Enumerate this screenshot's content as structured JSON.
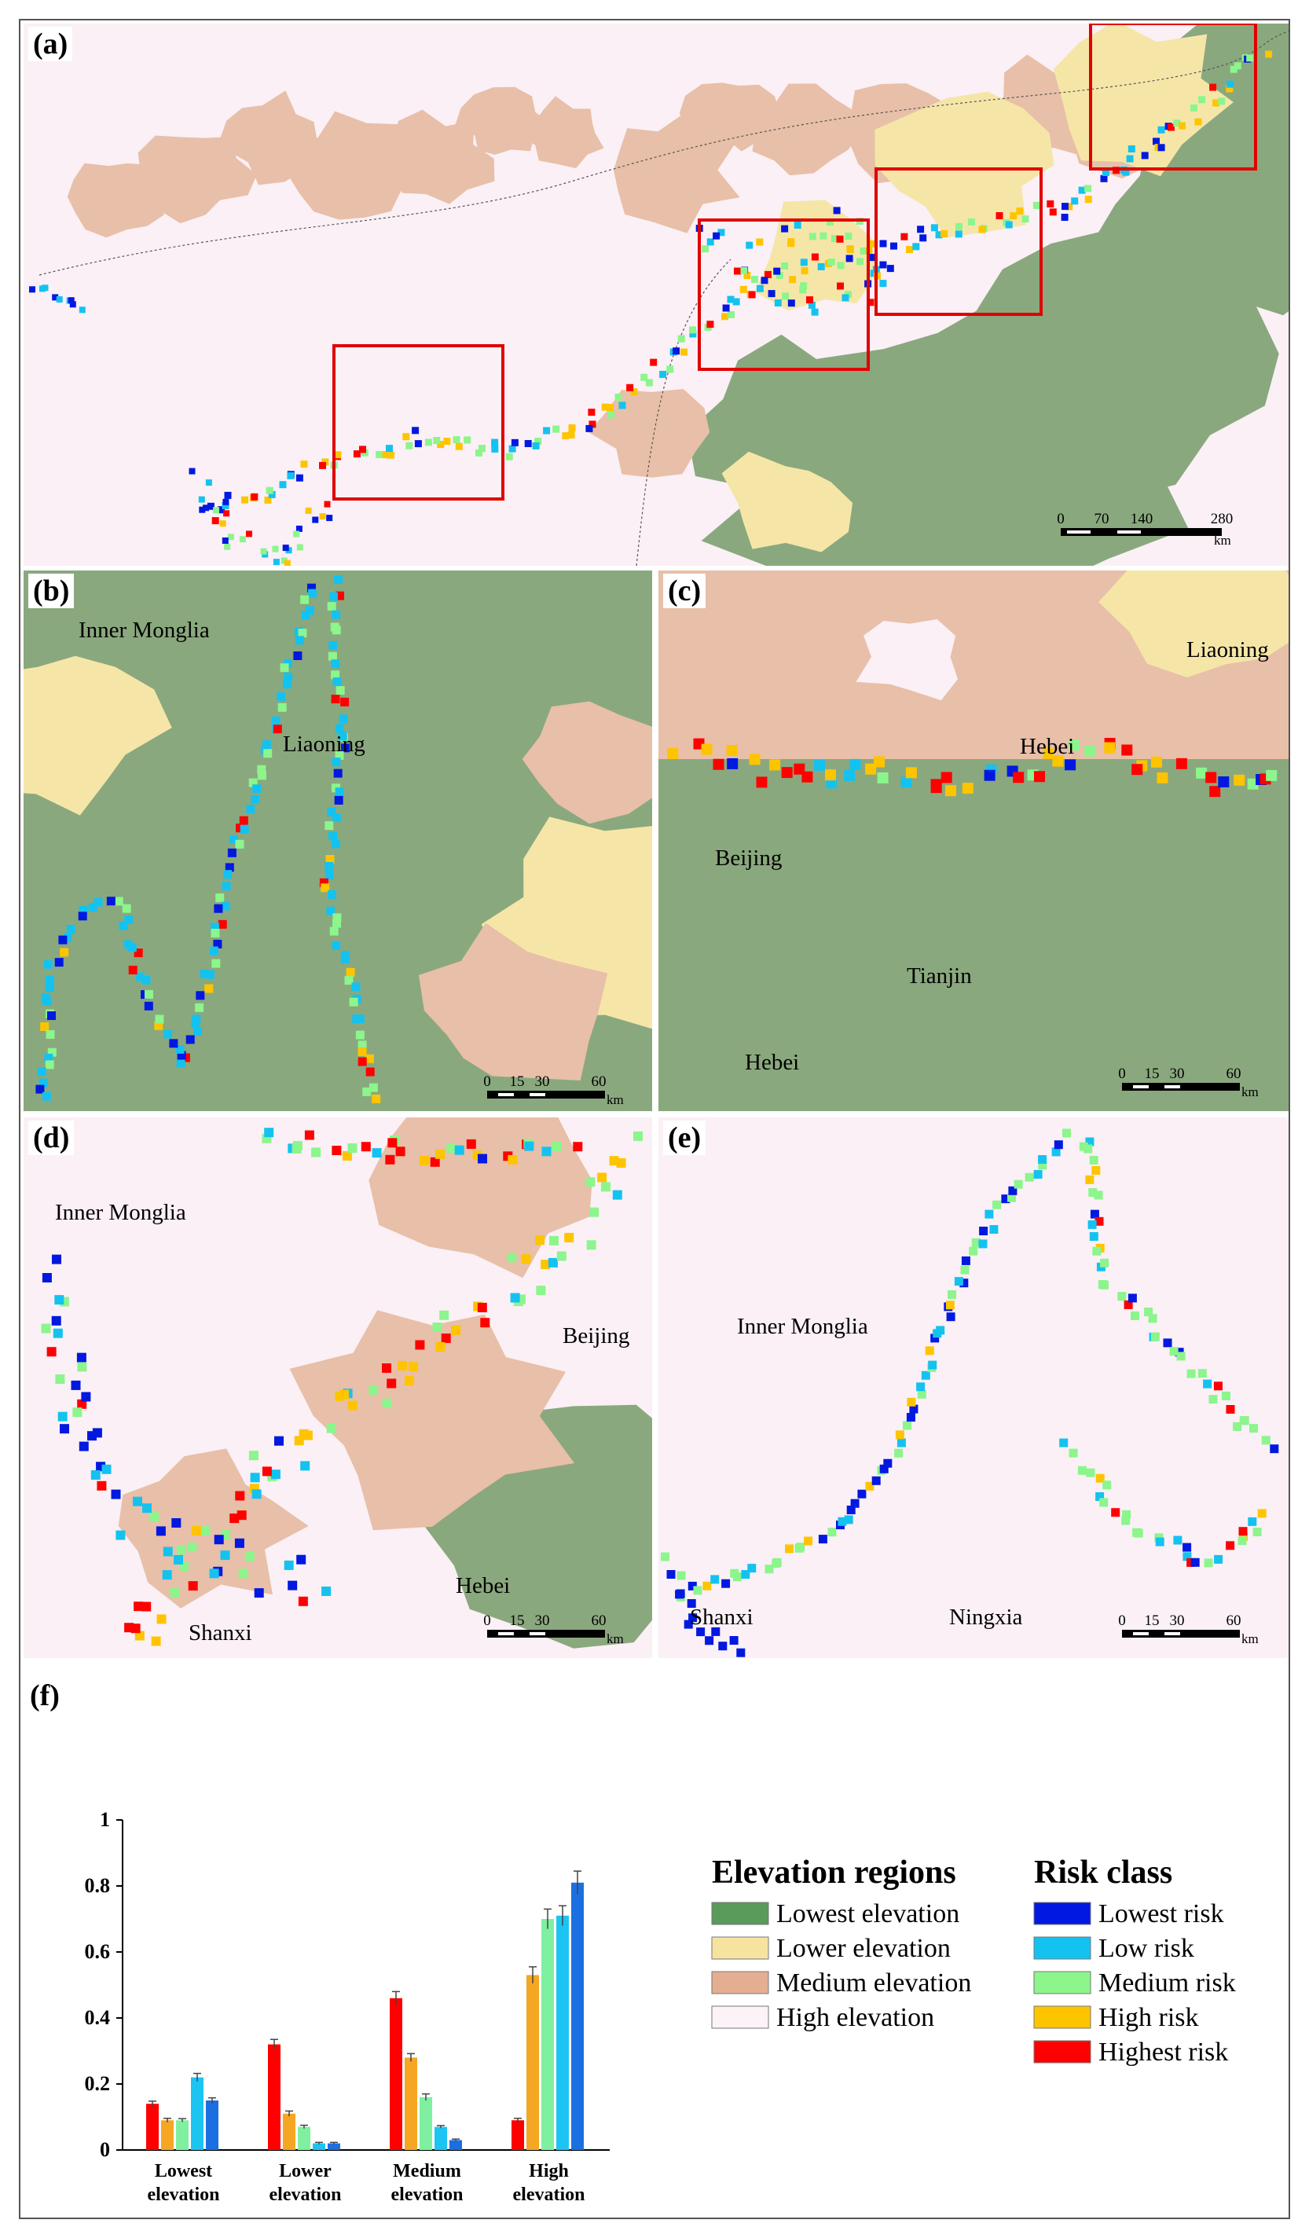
{
  "panels": [
    {
      "id": "a",
      "label": "(a)",
      "scale": {
        "ticks": [
          "0",
          "70",
          "140",
          "280"
        ],
        "unit": "km"
      },
      "place_labels": []
    },
    {
      "id": "b",
      "label": "(b)",
      "scale": {
        "ticks": [
          "0",
          "15",
          "30",
          "60"
        ],
        "unit": "km"
      },
      "place_labels": [
        "Inner Monglia",
        "Liaoning"
      ]
    },
    {
      "id": "c",
      "label": "(c)",
      "scale": {
        "ticks": [
          "0",
          "15",
          "30",
          "60"
        ],
        "unit": "km"
      },
      "place_labels": [
        "Liaoning",
        "Hebei",
        "Beijing",
        "Tianjin",
        "Hebei"
      ]
    },
    {
      "id": "d",
      "label": "(d)",
      "scale": {
        "ticks": [
          "0",
          "15",
          "30",
          "60"
        ],
        "unit": "km"
      },
      "place_labels": [
        "Inner Monglia",
        "Beijing",
        "Hebei",
        "Shanxi"
      ]
    },
    {
      "id": "e",
      "label": "(e)",
      "scale": {
        "ticks": [
          "0",
          "15",
          "30",
          "60"
        ],
        "unit": "km"
      },
      "place_labels": [
        "Inner Monglia",
        "Shanxi",
        "Ningxia"
      ]
    }
  ],
  "colors": {
    "lowest_elev": "#8aa87e",
    "lower_elev": "#f5e6a8",
    "medium_elev": "#e8bfa8",
    "high_elev": "#faf0f6",
    "lowest_risk": "#0018e0",
    "low_risk": "#14c2f0",
    "medium_risk": "#8cf58c",
    "high_risk": "#ffc400",
    "highest_risk": "#ff0000"
  },
  "chart_label": "(f)",
  "chart_data": {
    "type": "bar",
    "categories": [
      "Lowest elevation",
      "Lower elevation",
      "Medium elevation",
      "High elevation"
    ],
    "ylim": [
      0,
      1
    ],
    "yticks": [
      "0",
      "0.2",
      "0.4",
      "0.6",
      "0.8",
      "1"
    ],
    "series": [
      {
        "name": "Highest risk",
        "color": "#ff0000",
        "values": [
          0.14,
          0.32,
          0.46,
          0.09
        ],
        "errors": [
          0.008,
          0.015,
          0.02,
          0.006
        ]
      },
      {
        "name": "High risk",
        "color": "#f5a623",
        "values": [
          0.09,
          0.11,
          0.28,
          0.53
        ],
        "errors": [
          0.006,
          0.008,
          0.012,
          0.025
        ]
      },
      {
        "name": "Medium risk",
        "color": "#7ff0a0",
        "values": [
          0.09,
          0.07,
          0.16,
          0.7
        ],
        "errors": [
          0.005,
          0.005,
          0.01,
          0.03
        ]
      },
      {
        "name": "Low risk",
        "color": "#1cc4f2",
        "values": [
          0.22,
          0.02,
          0.07,
          0.71
        ],
        "errors": [
          0.012,
          0.003,
          0.004,
          0.03
        ]
      },
      {
        "name": "Lowest risk",
        "color": "#1c6fe0",
        "values": [
          0.15,
          0.02,
          0.03,
          0.81
        ],
        "errors": [
          0.008,
          0.003,
          0.003,
          0.035
        ]
      }
    ],
    "legends": [
      {
        "title": "Elevation regions",
        "items": [
          {
            "label": "Lowest elevation",
            "color": "#5a9a5a"
          },
          {
            "label": "Lower elevation",
            "color": "#f7e3a0"
          },
          {
            "label": "Medium elevation",
            "color": "#e4ae92"
          },
          {
            "label": "High elevation",
            "color": "#fbf3f8"
          }
        ]
      },
      {
        "title": "Risk class",
        "items": [
          {
            "label": "Lowest risk",
            "color": "#0018e0"
          },
          {
            "label": "Low risk",
            "color": "#14c2f0"
          },
          {
            "label": "Medium risk",
            "color": "#8cf58c"
          },
          {
            "label": "High risk",
            "color": "#ffc400"
          },
          {
            "label": "Highest risk",
            "color": "#ff0000"
          }
        ]
      }
    ]
  }
}
